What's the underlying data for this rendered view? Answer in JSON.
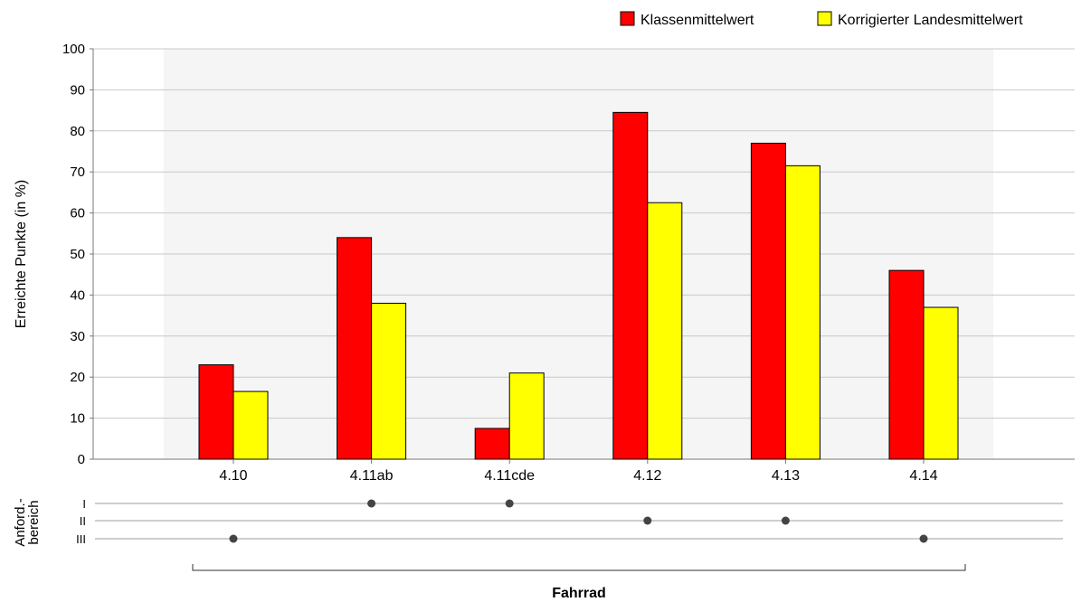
{
  "chart_data": {
    "type": "bar",
    "categories": [
      "4.10",
      "4.11ab",
      "4.11cde",
      "4.12",
      "4.13",
      "4.14"
    ],
    "series": [
      {
        "name": "Klassenmittelwert",
        "color": "#ff0000",
        "values": [
          23,
          54,
          7.5,
          84.5,
          77,
          46
        ]
      },
      {
        "name": "Korrigierter Landesmittelwert",
        "color": "#ffff00",
        "values": [
          16.5,
          38,
          21,
          62.5,
          71.5,
          37
        ]
      }
    ],
    "ylabel": "Erreichte Punkte (in %)",
    "ylim": [
      0,
      100
    ],
    "yticks": [
      0,
      10,
      20,
      30,
      40,
      50,
      60,
      70,
      80,
      90,
      100
    ],
    "grid": true,
    "legend_position": "top-right",
    "anforderungsbereich": {
      "label_line1": "Anford.-",
      "label_line2": "bereich",
      "levels": [
        "I",
        "II",
        "III"
      ],
      "assignments": [
        "III",
        "I",
        "I",
        "II",
        "II",
        "III"
      ]
    },
    "group_label": "Fahrrad"
  }
}
